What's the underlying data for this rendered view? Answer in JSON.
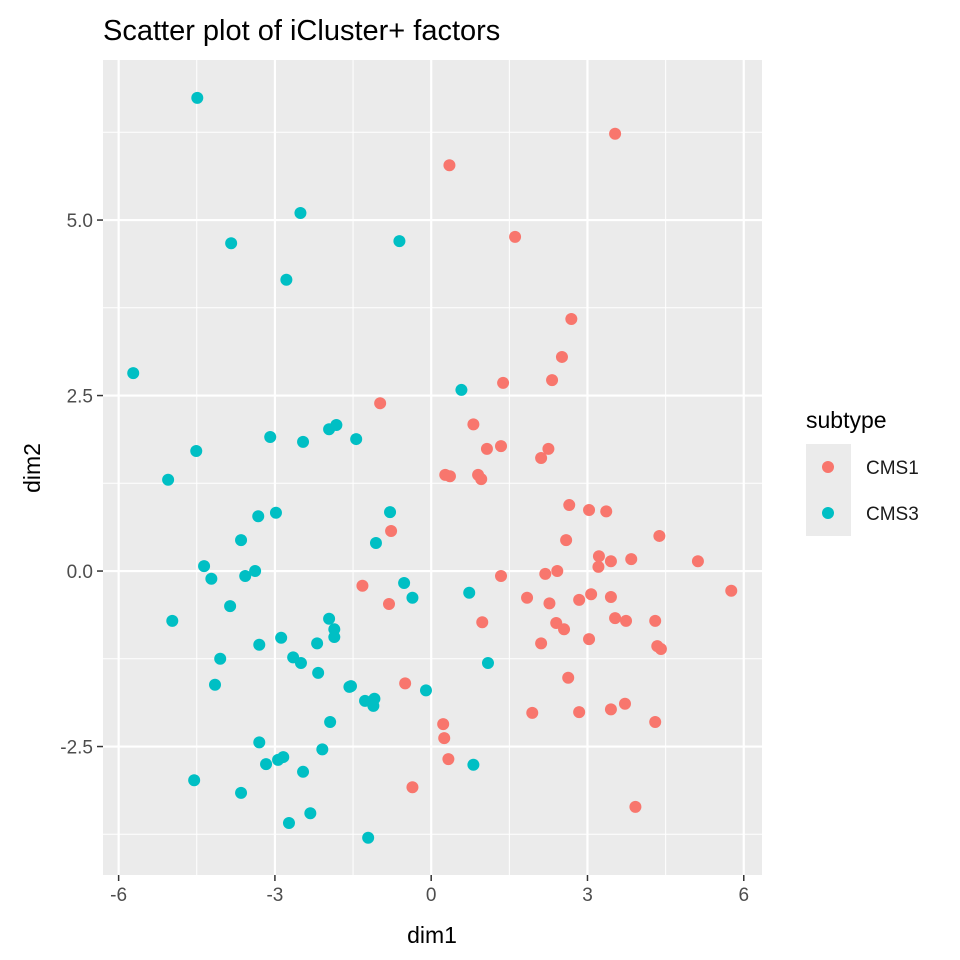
{
  "chart_data": {
    "type": "scatter",
    "title": "Scatter plot of iCluster+ factors",
    "xlabel": "dim1",
    "ylabel": "dim2",
    "xlim": [
      -6.3,
      6.35
    ],
    "ylim": [
      -4.33,
      7.28
    ],
    "xticks": [
      -6,
      -3,
      0,
      3,
      6
    ],
    "xtick_labels": [
      "-6",
      "-3",
      "0",
      "3",
      "6"
    ],
    "yticks": [
      -2.5,
      0,
      2.5,
      5
    ],
    "ytick_labels": [
      "-2.5",
      "0.0",
      "2.5",
      "5.0"
    ],
    "grid": true,
    "legend": {
      "title": "subtype",
      "placement": "right"
    },
    "series": [
      {
        "name": "CMS1",
        "color": "#F8766D",
        "points": [
          [
            3.53,
            6.23
          ],
          [
            0.35,
            5.78
          ],
          [
            1.61,
            4.76
          ],
          [
            2.69,
            3.59
          ],
          [
            2.51,
            3.05
          ],
          [
            1.38,
            2.68
          ],
          [
            2.32,
            2.72
          ],
          [
            -0.98,
            2.39
          ],
          [
            0.81,
            2.09
          ],
          [
            1.34,
            1.78
          ],
          [
            1.07,
            1.74
          ],
          [
            2.25,
            1.74
          ],
          [
            2.11,
            1.61
          ],
          [
            0.27,
            1.37
          ],
          [
            0.36,
            1.35
          ],
          [
            0.9,
            1.37
          ],
          [
            0.96,
            1.31
          ],
          [
            2.65,
            0.94
          ],
          [
            3.03,
            0.87
          ],
          [
            3.36,
            0.85
          ],
          [
            2.59,
            0.44
          ],
          [
            4.38,
            0.5
          ],
          [
            -0.77,
            0.57
          ],
          [
            3.22,
            0.21
          ],
          [
            3.45,
            0.14
          ],
          [
            3.84,
            0.17
          ],
          [
            5.12,
            0.14
          ],
          [
            3.21,
            0.06
          ],
          [
            2.42,
            0.0
          ],
          [
            2.19,
            -0.04
          ],
          [
            1.34,
            -0.07
          ],
          [
            -1.32,
            -0.21
          ],
          [
            5.76,
            -0.28
          ],
          [
            3.07,
            -0.33
          ],
          [
            3.45,
            -0.37
          ],
          [
            1.84,
            -0.38
          ],
          [
            2.84,
            -0.41
          ],
          [
            -0.81,
            -0.47
          ],
          [
            2.27,
            -0.46
          ],
          [
            3.53,
            -0.67
          ],
          [
            3.74,
            -0.71
          ],
          [
            4.3,
            -0.71
          ],
          [
            2.4,
            -0.74
          ],
          [
            0.98,
            -0.73
          ],
          [
            2.55,
            -0.83
          ],
          [
            3.03,
            -0.97
          ],
          [
            2.11,
            -1.03
          ],
          [
            4.34,
            -1.07
          ],
          [
            4.41,
            -1.11
          ],
          [
            2.63,
            -1.52
          ],
          [
            -0.5,
            -1.6
          ],
          [
            1.94,
            -2.02
          ],
          [
            2.84,
            -2.01
          ],
          [
            3.45,
            -1.97
          ],
          [
            3.72,
            -1.89
          ],
          [
            4.3,
            -2.15
          ],
          [
            0.23,
            -2.18
          ],
          [
            0.25,
            -2.38
          ],
          [
            0.33,
            -2.68
          ],
          [
            -0.36,
            -3.08
          ],
          [
            3.92,
            -3.36
          ]
        ]
      },
      {
        "name": "CMS3",
        "color": "#00BFC4",
        "points": [
          [
            -4.49,
            6.74
          ],
          [
            -2.51,
            5.1
          ],
          [
            -3.84,
            4.67
          ],
          [
            -0.61,
            4.7
          ],
          [
            -2.78,
            4.15
          ],
          [
            -5.72,
            2.82
          ],
          [
            0.58,
            2.58
          ],
          [
            -1.82,
            2.08
          ],
          [
            -1.96,
            2.02
          ],
          [
            -3.09,
            1.91
          ],
          [
            -2.46,
            1.84
          ],
          [
            -1.44,
            1.88
          ],
          [
            -4.51,
            1.71
          ],
          [
            -5.05,
            1.3
          ],
          [
            -0.79,
            0.84
          ],
          [
            -2.98,
            0.83
          ],
          [
            -3.32,
            0.78
          ],
          [
            -3.65,
            0.44
          ],
          [
            -1.06,
            0.4
          ],
          [
            -4.36,
            0.07
          ],
          [
            -3.38,
            0.0
          ],
          [
            -3.57,
            -0.07
          ],
          [
            -4.22,
            -0.11
          ],
          [
            -0.52,
            -0.17
          ],
          [
            -0.36,
            -0.38
          ],
          [
            0.73,
            -0.31
          ],
          [
            -3.86,
            -0.5
          ],
          [
            -4.97,
            -0.71
          ],
          [
            -1.96,
            -0.68
          ],
          [
            -1.86,
            -0.83
          ],
          [
            -1.86,
            -0.94
          ],
          [
            -2.88,
            -0.95
          ],
          [
            -2.19,
            -1.03
          ],
          [
            -3.3,
            -1.05
          ],
          [
            -4.05,
            -1.25
          ],
          [
            -2.65,
            -1.23
          ],
          [
            -2.5,
            -1.31
          ],
          [
            1.09,
            -1.31
          ],
          [
            -2.17,
            -1.45
          ],
          [
            -4.15,
            -1.62
          ],
          [
            -1.54,
            -1.64
          ],
          [
            -1.57,
            -1.65
          ],
          [
            -0.1,
            -1.7
          ],
          [
            -1.09,
            -1.82
          ],
          [
            -1.27,
            -1.85
          ],
          [
            -1.11,
            -1.92
          ],
          [
            -1.94,
            -2.15
          ],
          [
            -3.3,
            -2.44
          ],
          [
            -2.09,
            -2.54
          ],
          [
            -2.84,
            -2.65
          ],
          [
            -2.94,
            -2.69
          ],
          [
            -3.17,
            -2.75
          ],
          [
            0.81,
            -2.76
          ],
          [
            -2.46,
            -2.86
          ],
          [
            -4.55,
            -2.98
          ],
          [
            -3.65,
            -3.16
          ],
          [
            -2.32,
            -3.45
          ],
          [
            -2.73,
            -3.59
          ],
          [
            -1.21,
            -3.8
          ]
        ]
      }
    ]
  }
}
